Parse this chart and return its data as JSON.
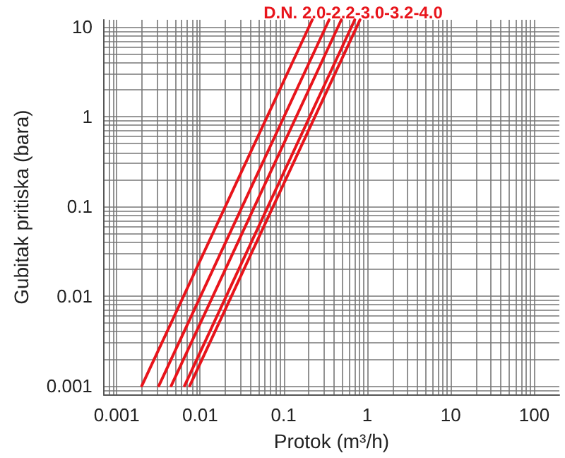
{
  "chart_data": {
    "type": "line",
    "title": "D.N. 2.0-2.2-3.0-3.2-4.0",
    "xlabel": "Protok (m³/h)",
    "ylabel": "Gubitak pritiska (bara)",
    "log": "xy",
    "grid": true,
    "marker": "none",
    "line_style": "solid",
    "xlim": [
      0.0007,
      200
    ],
    "ylim": [
      0.0008,
      12
    ],
    "xticks": [
      {
        "value": 0.0008,
        "label": null
      },
      {
        "value": 0.0009,
        "label": null
      },
      {
        "value": 0.001,
        "label": "0.001"
      },
      {
        "value": 0.002,
        "label": null
      },
      {
        "value": 0.003,
        "label": null
      },
      {
        "value": 0.004,
        "label": null
      },
      {
        "value": 0.005,
        "label": null
      },
      {
        "value": 0.006,
        "label": null
      },
      {
        "value": 0.007,
        "label": null
      },
      {
        "value": 0.008,
        "label": null
      },
      {
        "value": 0.009,
        "label": null
      },
      {
        "value": 0.01,
        "label": "0.01"
      },
      {
        "value": 0.02,
        "label": null
      },
      {
        "value": 0.03,
        "label": null
      },
      {
        "value": 0.04,
        "label": null
      },
      {
        "value": 0.05,
        "label": null
      },
      {
        "value": 0.06,
        "label": null
      },
      {
        "value": 0.07,
        "label": null
      },
      {
        "value": 0.08,
        "label": null
      },
      {
        "value": 0.09,
        "label": null
      },
      {
        "value": 0.1,
        "label": "0.1"
      },
      {
        "value": 0.2,
        "label": null
      },
      {
        "value": 0.3,
        "label": null
      },
      {
        "value": 0.4,
        "label": null
      },
      {
        "value": 0.5,
        "label": null
      },
      {
        "value": 0.6,
        "label": null
      },
      {
        "value": 0.7,
        "label": null
      },
      {
        "value": 0.8,
        "label": null
      },
      {
        "value": 0.9,
        "label": null
      },
      1,
      {
        "value": 2,
        "label": null
      },
      {
        "value": 3,
        "label": null
      },
      {
        "value": 4,
        "label": null
      },
      {
        "value": 5,
        "label": null
      },
      {
        "value": 6,
        "label": null
      },
      {
        "value": 7,
        "label": null
      },
      {
        "value": 8,
        "label": null
      },
      {
        "value": 9,
        "label": null
      },
      10,
      {
        "value": 20,
        "label": null
      },
      {
        "value": 30,
        "label": null
      },
      {
        "value": 40,
        "label": null
      },
      {
        "value": 50,
        "label": null
      },
      {
        "value": 60,
        "label": null
      },
      {
        "value": 70,
        "label": null
      },
      {
        "value": 80,
        "label": null
      },
      {
        "value": 90,
        "label": null
      },
      100
    ],
    "yticks": [
      {
        "value": 0.0009,
        "label": null
      },
      {
        "value": 0.001,
        "label": "0.001"
      },
      {
        "value": 0.002,
        "label": null
      },
      {
        "value": 0.003,
        "label": null
      },
      {
        "value": 0.004,
        "label": null
      },
      {
        "value": 0.005,
        "label": null
      },
      {
        "value": 0.006,
        "label": null
      },
      {
        "value": 0.007,
        "label": null
      },
      {
        "value": 0.008,
        "label": null
      },
      {
        "value": 0.009,
        "label": null
      },
      {
        "value": 0.01,
        "label": "0.01"
      },
      {
        "value": 0.02,
        "label": null
      },
      {
        "value": 0.03,
        "label": null
      },
      {
        "value": 0.04,
        "label": null
      },
      {
        "value": 0.05,
        "label": null
      },
      {
        "value": 0.06,
        "label": null
      },
      {
        "value": 0.07,
        "label": null
      },
      {
        "value": 0.08,
        "label": null
      },
      {
        "value": 0.09,
        "label": null
      },
      {
        "value": 0.1,
        "label": "0.1"
      },
      {
        "value": 0.2,
        "label": null
      },
      {
        "value": 0.3,
        "label": null
      },
      {
        "value": 0.4,
        "label": null
      },
      {
        "value": 0.5,
        "label": null
      },
      {
        "value": 0.6,
        "label": null
      },
      {
        "value": 0.7,
        "label": null
      },
      {
        "value": 0.8,
        "label": null
      },
      {
        "value": 0.9,
        "label": null
      },
      1,
      {
        "value": 2,
        "label": null
      },
      {
        "value": 3,
        "label": null
      },
      {
        "value": 4,
        "label": null
      },
      {
        "value": 5,
        "label": null
      },
      {
        "value": 6,
        "label": null
      },
      {
        "value": 7,
        "label": null
      },
      {
        "value": 8,
        "label": null
      },
      {
        "value": 9,
        "label": null
      },
      10
    ],
    "series": [
      {
        "color": "#e8141b",
        "x": [
          0.002,
          0.22
        ],
        "values": [
          0.001,
          12
        ]
      },
      {
        "color": "#e8141b",
        "x": [
          0.0032,
          0.35
        ],
        "values": [
          0.001,
          12
        ]
      },
      {
        "color": "#e8141b",
        "x": [
          0.0045,
          0.49
        ],
        "values": [
          0.001,
          12
        ]
      },
      {
        "color": "#e8141b",
        "x": [
          0.0065,
          0.71
        ],
        "values": [
          0.001,
          12
        ]
      },
      {
        "color": "#e8141b",
        "x": [
          0.0075,
          0.82
        ],
        "values": [
          0.001,
          12
        ]
      }
    ]
  }
}
